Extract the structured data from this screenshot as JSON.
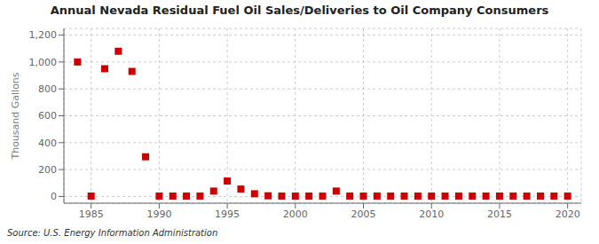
{
  "chart_data": {
    "type": "scatter",
    "title": "Annual Nevada Residual Fuel Oil Sales/Deliveries to Oil Company Consumers",
    "ylabel": "Thousand Gallons",
    "annotation": "Source: U.S. Energy Information Administration",
    "x": [
      1984,
      1985,
      1986,
      1987,
      1988,
      1989,
      1990,
      1991,
      1992,
      1993,
      1994,
      1995,
      1996,
      1997,
      1998,
      1999,
      2000,
      2001,
      2002,
      2003,
      2004,
      2005,
      2006,
      2007,
      2008,
      2009,
      2010,
      2011,
      2012,
      2013,
      2014,
      2015,
      2016,
      2017,
      2018,
      2019,
      2020
    ],
    "values": [
      1000,
      3,
      950,
      1080,
      930,
      295,
      3,
      3,
      3,
      3,
      40,
      115,
      55,
      20,
      5,
      3,
      3,
      3,
      3,
      40,
      3,
      3,
      3,
      3,
      3,
      3,
      3,
      3,
      3,
      3,
      3,
      3,
      3,
      3,
      3,
      3,
      3
    ],
    "color": "#cc0000",
    "marker": "square",
    "xlim": [
      1983,
      2021
    ],
    "ylim": [
      -50,
      1250
    ],
    "xticks": [
      1985,
      1990,
      1995,
      2000,
      2005,
      2010,
      2015,
      2020
    ],
    "yticks": [
      0,
      200,
      400,
      600,
      800,
      {
        "value": 1000,
        "label": "1,000"
      },
      {
        "value": 1200,
        "label": "1,200"
      }
    ],
    "grid": true
  }
}
